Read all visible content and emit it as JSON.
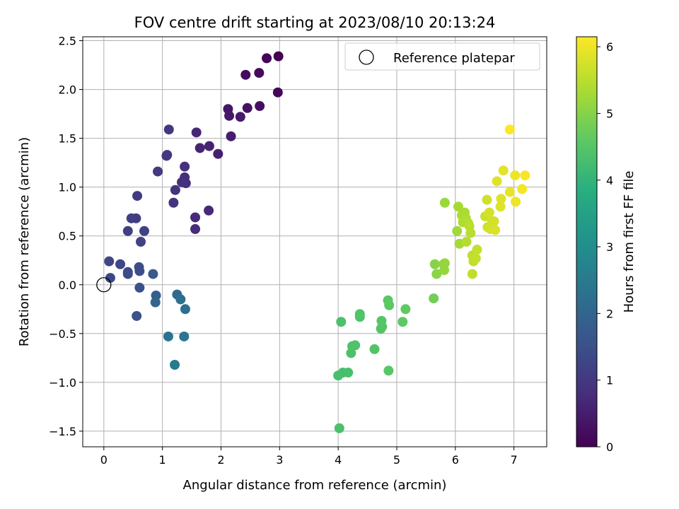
{
  "chart_data": {
    "type": "scatter",
    "title": "FOV centre drift starting at 2023/08/10 20:13:24",
    "xlabel": "Angular distance from reference (arcmin)",
    "ylabel": "Rotation from reference (arcmin)",
    "xlim": [
      -0.36,
      7.56
    ],
    "ylim": [
      -1.66,
      2.54
    ],
    "xticks": [
      "0",
      "1",
      "2",
      "3",
      "4",
      "5",
      "6",
      "7"
    ],
    "yticks": [
      "−1.5",
      "−1.0",
      "−0.5",
      "0.0",
      "0.5",
      "1.0",
      "1.5",
      "2.0",
      "2.5"
    ],
    "grid": true,
    "legend": {
      "location": "upper right",
      "entries": [
        "Reference platepar"
      ]
    },
    "colorbar": {
      "label": "Hours from first FF file",
      "range": [
        0,
        6.15
      ],
      "ticks": [
        "0",
        "1",
        "2",
        "3",
        "4",
        "5",
        "6"
      ],
      "colormap": "viridis"
    },
    "reference_point": {
      "x": 0,
      "y": 0,
      "label": "Reference platepar"
    },
    "points": [
      {
        "x": 2.98,
        "y": 2.34,
        "t": 0.0
      },
      {
        "x": 2.78,
        "y": 2.32,
        "t": 0.05
      },
      {
        "x": 2.97,
        "y": 1.97,
        "t": 0.1
      },
      {
        "x": 2.65,
        "y": 2.17,
        "t": 0.15
      },
      {
        "x": 2.42,
        "y": 2.15,
        "t": 0.2
      },
      {
        "x": 2.66,
        "y": 1.83,
        "t": 0.25
      },
      {
        "x": 2.45,
        "y": 1.81,
        "t": 0.3
      },
      {
        "x": 2.12,
        "y": 1.8,
        "t": 0.35
      },
      {
        "x": 2.14,
        "y": 1.73,
        "t": 0.4
      },
      {
        "x": 2.33,
        "y": 1.72,
        "t": 0.45
      },
      {
        "x": 2.17,
        "y": 1.52,
        "t": 0.5
      },
      {
        "x": 1.95,
        "y": 1.34,
        "t": 0.55
      },
      {
        "x": 1.8,
        "y": 1.42,
        "t": 0.6
      },
      {
        "x": 1.64,
        "y": 1.4,
        "t": 0.62
      },
      {
        "x": 1.58,
        "y": 1.56,
        "t": 0.65
      },
      {
        "x": 1.79,
        "y": 0.76,
        "t": 0.7
      },
      {
        "x": 1.56,
        "y": 0.69,
        "t": 0.72
      },
      {
        "x": 1.56,
        "y": 0.57,
        "t": 0.75
      },
      {
        "x": 1.4,
        "y": 1.04,
        "t": 0.8
      },
      {
        "x": 1.38,
        "y": 1.1,
        "t": 0.82
      },
      {
        "x": 1.38,
        "y": 1.21,
        "t": 0.85
      },
      {
        "x": 1.33,
        "y": 1.05,
        "t": 0.88
      },
      {
        "x": 1.22,
        "y": 0.97,
        "t": 0.9
      },
      {
        "x": 1.19,
        "y": 0.84,
        "t": 0.92
      },
      {
        "x": 1.11,
        "y": 1.59,
        "t": 0.95
      },
      {
        "x": 1.08,
        "y": 1.33,
        "t": 0.97
      },
      {
        "x": 1.07,
        "y": 1.32,
        "t": 1.0
      },
      {
        "x": 0.92,
        "y": 1.16,
        "t": 1.03
      },
      {
        "x": 0.57,
        "y": 0.91,
        "t": 1.06
      },
      {
        "x": 0.55,
        "y": 0.68,
        "t": 1.1
      },
      {
        "x": 0.47,
        "y": 0.68,
        "t": 1.13
      },
      {
        "x": 0.41,
        "y": 0.55,
        "t": 1.16
      },
      {
        "x": 0.69,
        "y": 0.55,
        "t": 1.2
      },
      {
        "x": 0.63,
        "y": 0.44,
        "t": 1.23
      },
      {
        "x": 0.09,
        "y": 0.24,
        "t": 1.26
      },
      {
        "x": 0.28,
        "y": 0.21,
        "t": 1.3
      },
      {
        "x": 0.11,
        "y": 0.07,
        "t": 1.33
      },
      {
        "x": 0.41,
        "y": 0.13,
        "t": 1.36
      },
      {
        "x": 0.41,
        "y": 0.11,
        "t": 1.4
      },
      {
        "x": 0.6,
        "y": 0.18,
        "t": 1.43
      },
      {
        "x": 0.61,
        "y": 0.14,
        "t": 1.46
      },
      {
        "x": 0.61,
        "y": -0.03,
        "t": 1.5
      },
      {
        "x": 0.56,
        "y": -0.32,
        "t": 1.55
      },
      {
        "x": 0.84,
        "y": 0.11,
        "t": 1.7
      },
      {
        "x": 0.89,
        "y": -0.11,
        "t": 1.9
      },
      {
        "x": 0.88,
        "y": -0.18,
        "t": 2.0
      },
      {
        "x": 1.25,
        "y": -0.1,
        "t": 2.1
      },
      {
        "x": 1.31,
        "y": -0.15,
        "t": 2.2
      },
      {
        "x": 1.39,
        "y": -0.25,
        "t": 2.25
      },
      {
        "x": 1.1,
        "y": -0.53,
        "t": 2.35
      },
      {
        "x": 1.37,
        "y": -0.53,
        "t": 2.4
      },
      {
        "x": 1.21,
        "y": -0.82,
        "t": 2.5
      },
      {
        "x": 4.02,
        "y": -1.47,
        "t": 4.35
      },
      {
        "x": 4.0,
        "y": -0.93,
        "t": 4.3
      },
      {
        "x": 4.08,
        "y": -0.9,
        "t": 4.3
      },
      {
        "x": 4.17,
        "y": -0.9,
        "t": 4.32
      },
      {
        "x": 4.05,
        "y": -0.38,
        "t": 4.35
      },
      {
        "x": 4.22,
        "y": -0.7,
        "t": 4.37
      },
      {
        "x": 4.24,
        "y": -0.63,
        "t": 4.38
      },
      {
        "x": 4.29,
        "y": -0.62,
        "t": 4.4
      },
      {
        "x": 4.37,
        "y": -0.33,
        "t": 4.42
      },
      {
        "x": 4.37,
        "y": -0.3,
        "t": 4.43
      },
      {
        "x": 4.62,
        "y": -0.66,
        "t": 4.45
      },
      {
        "x": 4.73,
        "y": -0.45,
        "t": 4.47
      },
      {
        "x": 4.75,
        "y": -0.43,
        "t": 4.48
      },
      {
        "x": 4.74,
        "y": -0.37,
        "t": 4.5
      },
      {
        "x": 4.86,
        "y": -0.88,
        "t": 4.52
      },
      {
        "x": 4.85,
        "y": -0.16,
        "t": 4.55
      },
      {
        "x": 4.87,
        "y": -0.21,
        "t": 4.57
      },
      {
        "x": 5.1,
        "y": -0.38,
        "t": 4.6
      },
      {
        "x": 5.15,
        "y": -0.25,
        "t": 4.62
      },
      {
        "x": 5.63,
        "y": -0.14,
        "t": 4.8
      },
      {
        "x": 5.65,
        "y": 0.21,
        "t": 5.0
      },
      {
        "x": 5.68,
        "y": 0.11,
        "t": 5.05
      },
      {
        "x": 5.8,
        "y": 0.21,
        "t": 5.1
      },
      {
        "x": 5.82,
        "y": 0.22,
        "t": 5.15
      },
      {
        "x": 5.81,
        "y": 0.15,
        "t": 5.15
      },
      {
        "x": 5.82,
        "y": 0.84,
        "t": 5.2
      },
      {
        "x": 6.03,
        "y": 0.55,
        "t": 5.25
      },
      {
        "x": 6.07,
        "y": 0.42,
        "t": 5.3
      },
      {
        "x": 6.05,
        "y": 0.8,
        "t": 5.3
      },
      {
        "x": 6.16,
        "y": 0.74,
        "t": 5.35
      },
      {
        "x": 6.11,
        "y": 0.71,
        "t": 5.35
      },
      {
        "x": 6.13,
        "y": 0.64,
        "t": 5.4
      },
      {
        "x": 6.18,
        "y": 0.68,
        "t": 5.4
      },
      {
        "x": 6.19,
        "y": 0.44,
        "t": 5.45
      },
      {
        "x": 6.22,
        "y": 0.63,
        "t": 5.45
      },
      {
        "x": 6.24,
        "y": 0.6,
        "t": 5.5
      },
      {
        "x": 6.26,
        "y": 0.53,
        "t": 5.5
      },
      {
        "x": 6.29,
        "y": 0.3,
        "t": 5.55
      },
      {
        "x": 6.31,
        "y": 0.24,
        "t": 5.55
      },
      {
        "x": 6.29,
        "y": 0.11,
        "t": 5.55
      },
      {
        "x": 6.35,
        "y": 0.27,
        "t": 5.6
      },
      {
        "x": 6.37,
        "y": 0.36,
        "t": 5.6
      },
      {
        "x": 6.51,
        "y": 0.7,
        "t": 5.65
      },
      {
        "x": 6.54,
        "y": 0.87,
        "t": 5.7
      },
      {
        "x": 6.55,
        "y": 0.59,
        "t": 5.7
      },
      {
        "x": 6.58,
        "y": 0.74,
        "t": 5.75
      },
      {
        "x": 6.6,
        "y": 0.57,
        "t": 5.75
      },
      {
        "x": 6.63,
        "y": 0.65,
        "t": 5.75
      },
      {
        "x": 6.66,
        "y": 0.65,
        "t": 5.75
      },
      {
        "x": 6.68,
        "y": 0.56,
        "t": 5.8
      },
      {
        "x": 6.71,
        "y": 1.06,
        "t": 5.85
      },
      {
        "x": 6.77,
        "y": 0.8,
        "t": 5.85
      },
      {
        "x": 6.78,
        "y": 0.88,
        "t": 5.85
      },
      {
        "x": 6.82,
        "y": 1.17,
        "t": 5.9
      },
      {
        "x": 6.93,
        "y": 0.95,
        "t": 5.95
      },
      {
        "x": 7.02,
        "y": 1.12,
        "t": 6.0
      },
      {
        "x": 7.03,
        "y": 0.85,
        "t": 6.0
      },
      {
        "x": 7.14,
        "y": 0.98,
        "t": 6.05
      },
      {
        "x": 7.19,
        "y": 1.12,
        "t": 6.1
      },
      {
        "x": 6.93,
        "y": 1.59,
        "t": 6.15
      }
    ]
  }
}
